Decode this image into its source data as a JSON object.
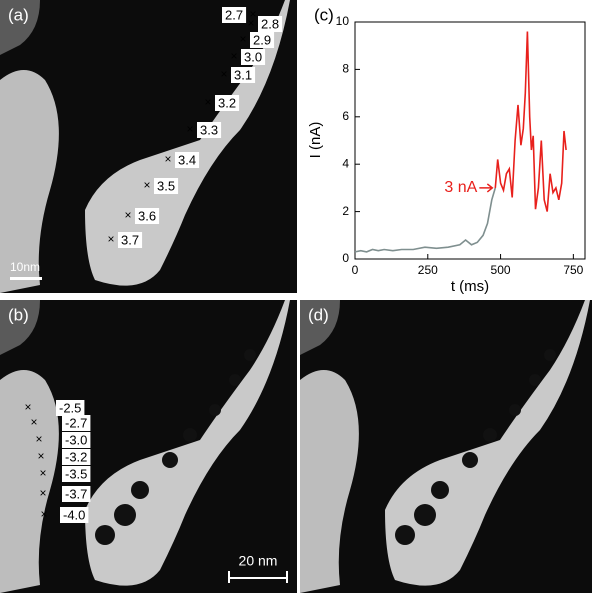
{
  "panels": [
    {
      "label": "(a)",
      "scale_label": "10nm",
      "markers": [
        "2.7",
        "2.8",
        "2.9",
        "3.0",
        "3.1",
        "3.2",
        "3.3",
        "3.4",
        "3.5",
        "3.6",
        "3.7"
      ]
    },
    {
      "label": "(b)",
      "scale_label": "20 nm",
      "markers": [
        "-2.5",
        "-2.7",
        "-3.0",
        "-3.2",
        "-3.5",
        "-3.7",
        "-4.0"
      ]
    },
    {
      "label": "(d)"
    }
  ],
  "chart_data": {
    "type": "line",
    "panel_label": "(c)",
    "x_label": "t (ms)",
    "y_label": "I (nA)",
    "annotation": "3 nA",
    "xlim": [
      0,
      790
    ],
    "xticks": [
      0,
      250,
      500,
      750
    ],
    "ylim": [
      0,
      10
    ],
    "yticks": [
      0,
      2,
      4,
      6,
      8,
      10
    ],
    "series": [
      {
        "color": "#7f8f8f",
        "x": [
          0,
          20,
          40,
          60,
          80,
          100,
          130,
          160,
          200,
          240,
          280,
          320,
          360,
          380,
          400,
          420,
          440,
          455,
          470,
          482
        ],
        "values": [
          0.3,
          0.35,
          0.3,
          0.4,
          0.35,
          0.4,
          0.35,
          0.4,
          0.4,
          0.5,
          0.45,
          0.5,
          0.6,
          0.8,
          0.6,
          0.7,
          1.0,
          1.5,
          2.5,
          3.0
        ]
      },
      {
        "color": "#e8201c",
        "x": [
          482,
          490,
          500,
          510,
          520,
          530,
          540,
          550,
          560,
          570,
          578,
          585,
          592,
          600,
          606,
          612,
          620,
          630,
          640,
          650,
          660,
          670,
          680,
          690,
          700,
          710,
          718,
          725
        ],
        "values": [
          3.0,
          4.2,
          3.2,
          2.9,
          3.6,
          3.8,
          2.6,
          5.0,
          6.5,
          4.8,
          5.5,
          7.0,
          9.6,
          6.0,
          4.6,
          5.2,
          2.1,
          3.0,
          5.0,
          2.5,
          2.0,
          3.6,
          2.8,
          3.0,
          2.5,
          3.2,
          5.4,
          4.6
        ]
      }
    ]
  }
}
